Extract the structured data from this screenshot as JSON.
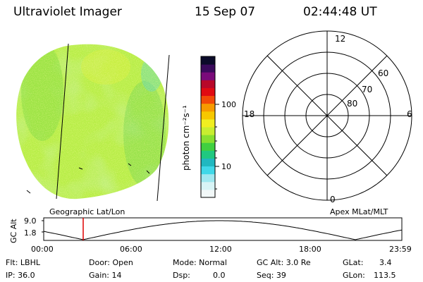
{
  "header": {
    "title": "Ultraviolet Imager",
    "date": "15 Sep 07",
    "time": "02:44:48 UT"
  },
  "colorbar": {
    "unit_label": "photon cm⁻²s⁻¹",
    "tick_labels": [
      "100",
      "10"
    ],
    "colors": [
      "#0b0b2a",
      "#3a0a5c",
      "#7a0a7a",
      "#b8082a",
      "#e00a12",
      "#f24a08",
      "#f79a00",
      "#f7c800",
      "#f0ee20",
      "#c8ee30",
      "#88e030",
      "#40d040",
      "#20c880",
      "#20b8c0",
      "#40d8e8",
      "#a0e8f0",
      "#d8f4f6",
      "#f2f8f8"
    ]
  },
  "left_panel": {
    "caption": "Geographic Lat/Lon"
  },
  "right_panel": {
    "caption": "Apex MLat/MLT",
    "mlt_labels": [
      "12",
      "18",
      "6",
      "0"
    ],
    "lat_labels": [
      "60",
      "70",
      "80"
    ]
  },
  "orbit_plot": {
    "ylabel": "GC Alt",
    "ytick_labels": [
      "9.0",
      "1.8"
    ],
    "xtick_labels": [
      "00:00",
      "06:00",
      "12:00",
      "18:00",
      "23:59"
    ],
    "marker_color": "#dd0000"
  },
  "info": {
    "flt": "Flt: LBHL",
    "door": "Door: Open",
    "mode": "Mode: Normal",
    "gcalt": "GC Alt: 3.0 Re",
    "glat_label": "GLat:",
    "glat_value": "3.4",
    "ip": "IP: 36.0",
    "gain": "Gain: 14",
    "dsp_label": "Dsp:",
    "dsp_value": "0.0",
    "seq": "Seq: 39",
    "glon_label": "GLon:",
    "glon_value": "113.5"
  }
}
